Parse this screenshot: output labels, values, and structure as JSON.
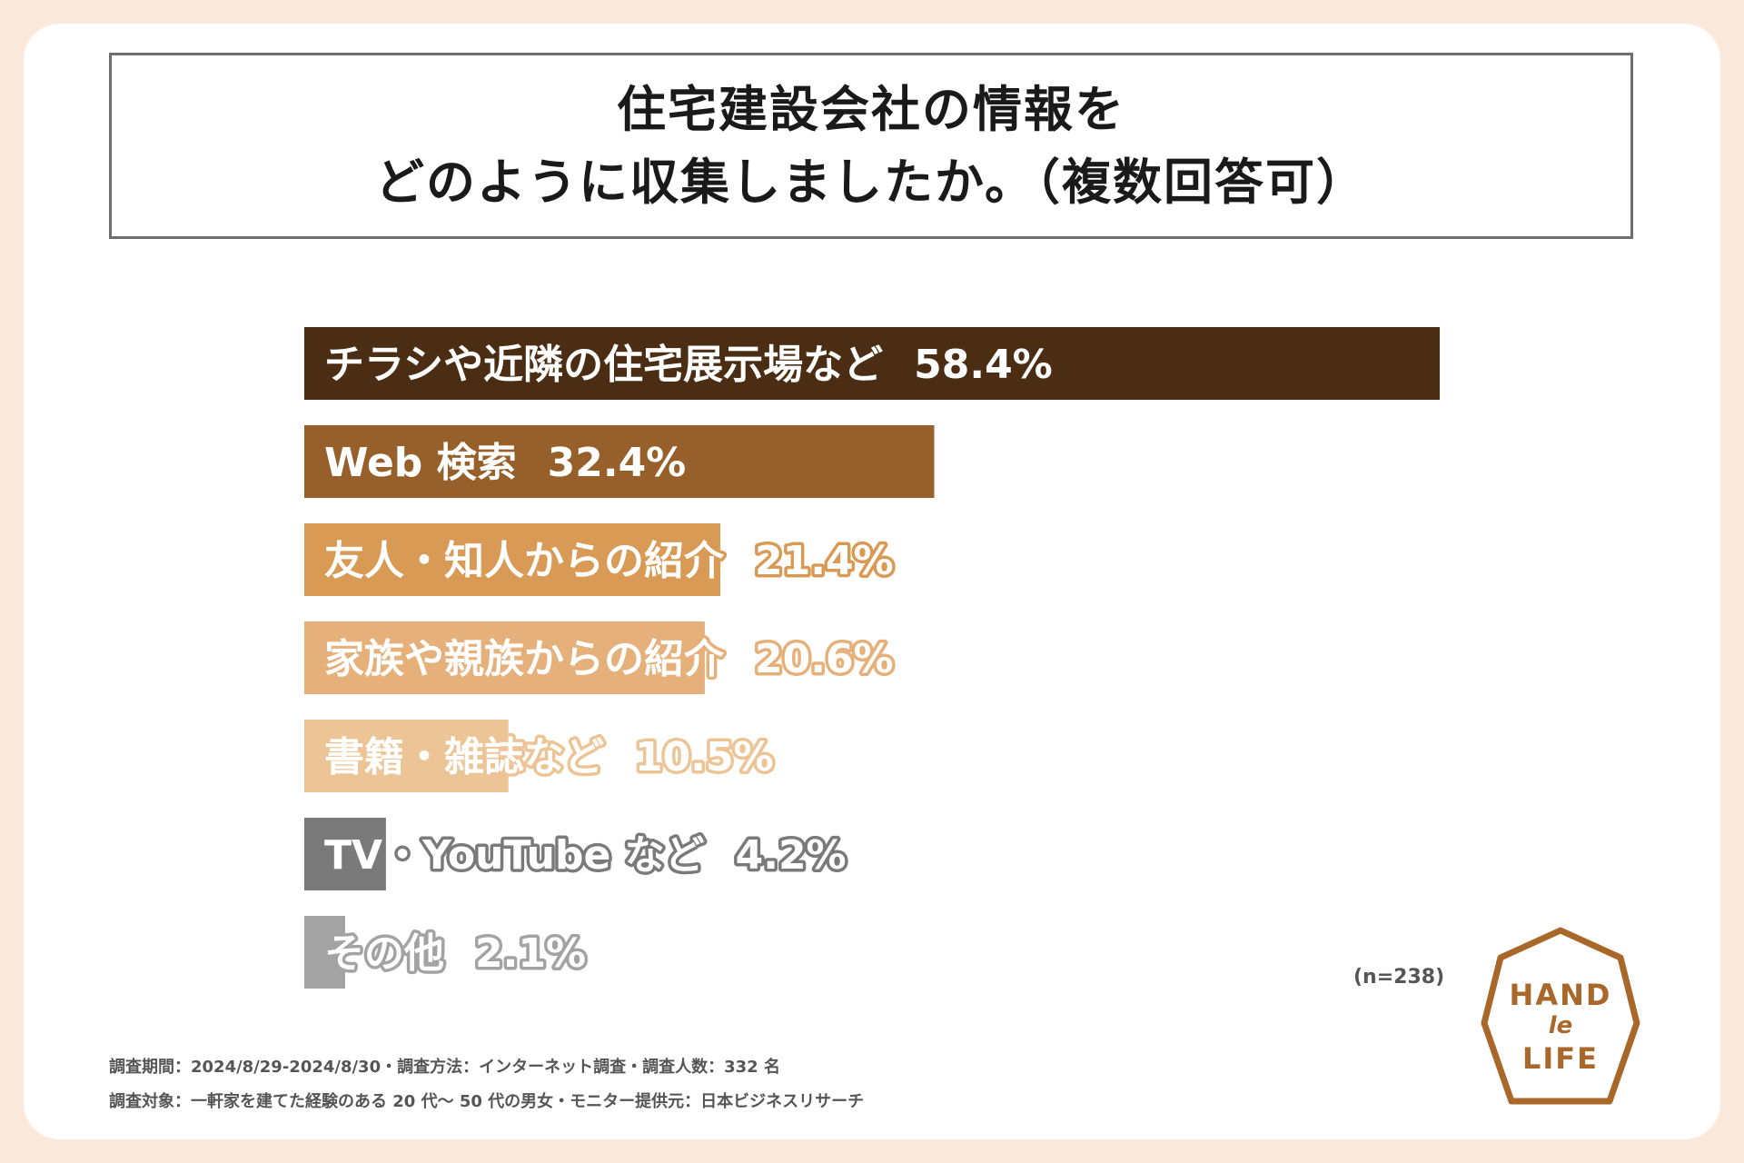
{
  "title": {
    "line1": "住宅建設会社の情報を",
    "line2": "どのように収集しましたか。（複数回答可）"
  },
  "chart_data": {
    "type": "bar",
    "orientation": "horizontal",
    "categories": [
      "チラシや近隣の住宅展示場など",
      "Web 検索",
      "友人・知人からの紹介",
      "家族や親族からの紹介",
      "書籍・雑誌など",
      "TV・YouTube など",
      "その他"
    ],
    "values": [
      58.4,
      32.4,
      21.4,
      20.6,
      10.5,
      4.2,
      2.1
    ],
    "value_labels": [
      "58.4%",
      "32.4%",
      "21.4%",
      "20.6%",
      "10.5%",
      "4.2%",
      "2.1%"
    ],
    "bar_colors": [
      "#4a2d12",
      "#97602a",
      "#d99a55",
      "#e6b07a",
      "#ecc496",
      "#7a7a7a",
      "#a3a3a3"
    ],
    "label_stroke_colors": [
      "",
      "",
      "#d99a55",
      "#e6b07a",
      "#ecc496",
      "#7a7a7a",
      "#a3a3a3"
    ],
    "xlim": [
      0,
      58.4
    ],
    "grid": false,
    "legend": "none"
  },
  "sample_note": "(n=238)",
  "footer": {
    "line1": "調査期間：2024/8/29-2024/8/30・調査方法：インターネット調査・調査人数：332 名",
    "line2": "調査対象：一軒家を建てた経験のある 20 代～ 50 代の男女・モニター提供元：日本ビジネスリサーチ"
  },
  "logo": {
    "word1": "HAND",
    "word2": "le",
    "word3": "LIFE",
    "color": "#a9672a"
  }
}
